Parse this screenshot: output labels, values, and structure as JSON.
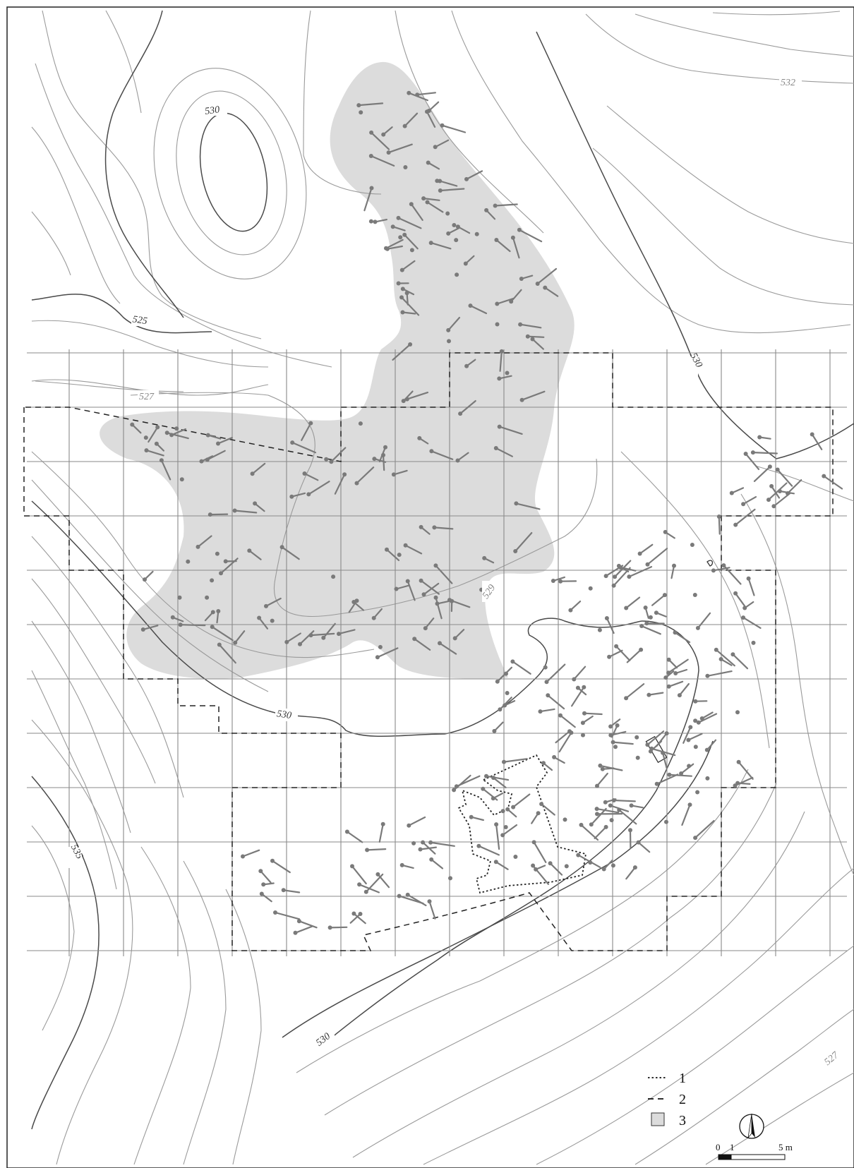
{
  "contour_labels": {
    "c530_hill": "530",
    "c525": "525",
    "c527_left": "527",
    "c532": "532",
    "c530_right": "530",
    "c529": "529",
    "c530_mid": "530",
    "c535": "535",
    "c530_bottom": "530",
    "c527_bottom": "527"
  },
  "legend": {
    "items": [
      {
        "key": "1",
        "symbol": "dotted-line"
      },
      {
        "key": "2",
        "symbol": "dashed-line"
      },
      {
        "key": "3",
        "symbol": "grey-fill-square"
      }
    ]
  },
  "scale_bar": {
    "label_zero": "0",
    "label_one": "1",
    "label_five": "5 m"
  },
  "north_arrow": {
    "icon": "north-arrow-icon"
  },
  "colors": {
    "shaded_area": "#dcdcdc",
    "artifact": "#7a7a7a",
    "grid": "#8a8a8a",
    "contour": "#9a9a9a",
    "contour_major": "#4a4a4a"
  }
}
